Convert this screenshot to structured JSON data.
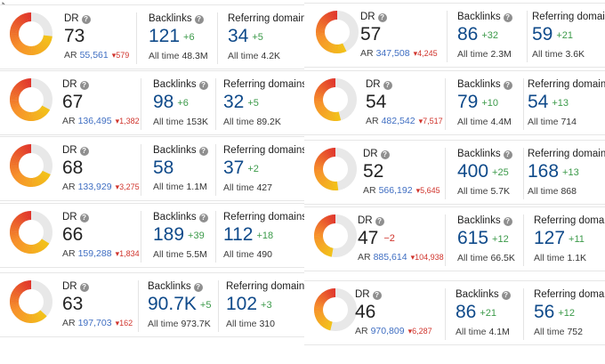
{
  "colors": {
    "ring_start": "#f2c317",
    "ring_mid": "#f7902a",
    "ring_end": "#e0352b",
    "ring_track": "#e8e8e8",
    "number_blue": "#0f4a8a",
    "delta_green": "#3c9a4a",
    "delta_red": "#d0342c",
    "ar_blue": "#3f6ec2"
  },
  "labels": {
    "dr": "DR",
    "ar": "AR",
    "backlinks": "Backlinks",
    "referring_domains": "Referring domains",
    "all_time": "All time",
    "help_icon": "?"
  },
  "cards": [
    {
      "dr": 73,
      "dr_text": "73",
      "dr_change": "",
      "ar": "55,561",
      "ar_change": "579",
      "backlinks": "121",
      "backlinks_change": "+6",
      "backlinks_all_time": "48.3M",
      "ref_domains": "34",
      "ref_domains_change": "+5",
      "ref_domains_all_time": "4.2K"
    },
    {
      "dr": 67,
      "dr_text": "67",
      "dr_change": "",
      "ar": "136,495",
      "ar_change": "1,382",
      "backlinks": "98",
      "backlinks_change": "+6",
      "backlinks_all_time": "153K",
      "ref_domains": "32",
      "ref_domains_change": "+5",
      "ref_domains_all_time": "89.2K"
    },
    {
      "dr": 68,
      "dr_text": "68",
      "dr_change": "",
      "ar": "133,929",
      "ar_change": "3,275",
      "backlinks": "58",
      "backlinks_change": "",
      "backlinks_all_time": "1.1M",
      "ref_domains": "37",
      "ref_domains_change": "+2",
      "ref_domains_all_time": "427"
    },
    {
      "dr": 66,
      "dr_text": "66",
      "dr_change": "",
      "ar": "159,288",
      "ar_change": "1,834",
      "backlinks": "189",
      "backlinks_change": "+39",
      "backlinks_all_time": "5.5M",
      "ref_domains": "112",
      "ref_domains_change": "+18",
      "ref_domains_all_time": "490"
    },
    {
      "dr": 63,
      "dr_text": "63",
      "dr_change": "",
      "ar": "197,703",
      "ar_change": "162",
      "backlinks": "90.7K",
      "backlinks_change": "+5",
      "backlinks_all_time": "973.7K",
      "ref_domains": "102",
      "ref_domains_change": "+3",
      "ref_domains_all_time": "310"
    },
    {
      "dr": 57,
      "dr_text": "57",
      "dr_change": "",
      "ar": "347,508",
      "ar_change": "4,245",
      "backlinks": "86",
      "backlinks_change": "+32",
      "backlinks_all_time": "2.3M",
      "ref_domains": "59",
      "ref_domains_change": "+21",
      "ref_domains_all_time": "3.6K"
    },
    {
      "dr": 54,
      "dr_text": "54",
      "dr_change": "",
      "ar": "482,542",
      "ar_change": "7,517",
      "backlinks": "79",
      "backlinks_change": "+10",
      "backlinks_all_time": "4.4M",
      "ref_domains": "54",
      "ref_domains_change": "+13",
      "ref_domains_all_time": "714"
    },
    {
      "dr": 52,
      "dr_text": "52",
      "dr_change": "",
      "ar": "566,192",
      "ar_change": "5,645",
      "backlinks": "400",
      "backlinks_change": "+25",
      "backlinks_all_time": "5.7K",
      "ref_domains": "168",
      "ref_domains_change": "+13",
      "ref_domains_all_time": "868"
    },
    {
      "dr": 47,
      "dr_text": "47",
      "dr_change": "−2",
      "ar": "885,614",
      "ar_change": "104,938",
      "backlinks": "615",
      "backlinks_change": "+12",
      "backlinks_all_time": "66.5K",
      "ref_domains": "127",
      "ref_domains_change": "+11",
      "ref_domains_all_time": "1.1K"
    },
    {
      "dr": 46,
      "dr_text": "46",
      "dr_change": "",
      "ar": "970,809",
      "ar_change": "6,287",
      "backlinks": "86",
      "backlinks_change": "+21",
      "backlinks_all_time": "4.1M",
      "ref_domains": "56",
      "ref_domains_change": "+12",
      "ref_domains_all_time": "752"
    }
  ]
}
